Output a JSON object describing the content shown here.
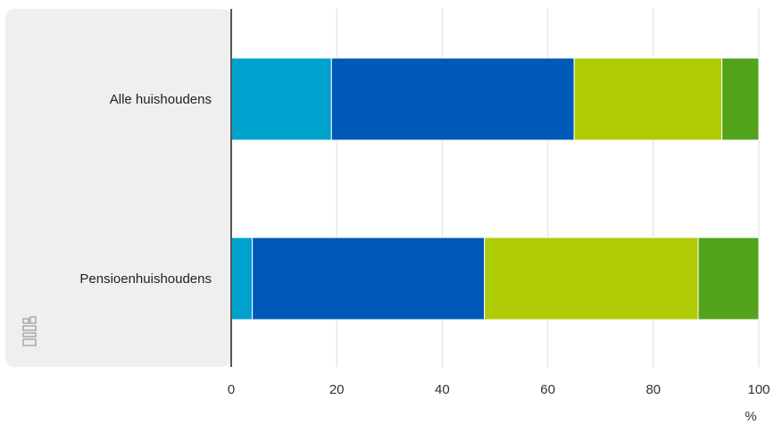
{
  "chart_data": {
    "type": "bar",
    "orientation": "horizontal",
    "stacked": true,
    "categories": [
      "Alle huishoudens",
      "Pensioenhuishoudens"
    ],
    "series": [
      {
        "values": [
          19,
          4
        ],
        "color": "#00a1cd"
      },
      {
        "values": [
          46,
          44
        ],
        "color": "#0058b8"
      },
      {
        "values": [
          28,
          40.5
        ],
        "color": "#afcb05"
      },
      {
        "values": [
          7,
          11.5
        ],
        "color": "#53a31d"
      }
    ],
    "x_ticks": [
      "0",
      "20",
      "40",
      "60",
      "80",
      "100"
    ],
    "xlim": [
      0,
      100
    ],
    "x_unit": "%",
    "grid": true,
    "logo_icon": "cbs-logo-icon"
  }
}
